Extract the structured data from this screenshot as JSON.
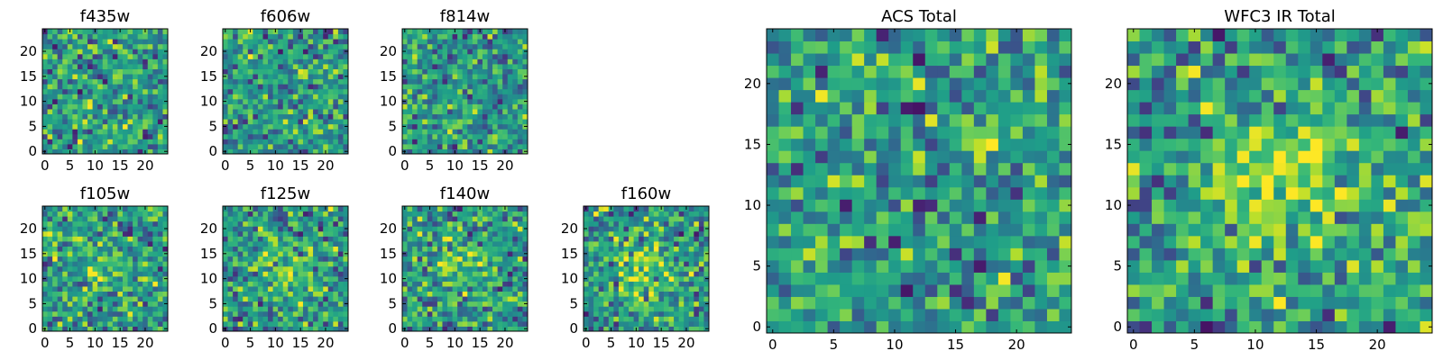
{
  "colormap": "viridis",
  "colors": {
    "low": "#440154",
    "mid": "#21918c",
    "high": "#fde725",
    "axis": "#000000",
    "background": "#ffffff"
  },
  "chart_data": [
    {
      "type": "heatmap",
      "title": "f435w",
      "grid": [
        25,
        25
      ],
      "xlim": [
        -0.5,
        24.5
      ],
      "ylim": [
        -0.5,
        24.5
      ],
      "xticks": [
        "0",
        "5",
        "10",
        "15",
        "20"
      ],
      "yticks": [
        "0",
        "5",
        "10",
        "15",
        "20"
      ],
      "pattern": "noise"
    },
    {
      "type": "heatmap",
      "title": "f606w",
      "grid": [
        25,
        25
      ],
      "xlim": [
        -0.5,
        24.5
      ],
      "ylim": [
        -0.5,
        24.5
      ],
      "xticks": [
        "0",
        "5",
        "10",
        "15",
        "20"
      ],
      "yticks": [
        "0",
        "5",
        "10",
        "15",
        "20"
      ],
      "pattern": "noise"
    },
    {
      "type": "heatmap",
      "title": "f814w",
      "grid": [
        25,
        25
      ],
      "xlim": [
        -0.5,
        24.5
      ],
      "ylim": [
        -0.5,
        24.5
      ],
      "xticks": [
        "0",
        "5",
        "10",
        "15",
        "20"
      ],
      "yticks": [
        "0",
        "5",
        "10",
        "15",
        "20"
      ],
      "pattern": "noise"
    },
    {
      "type": "heatmap",
      "title": "f105w",
      "grid": [
        25,
        25
      ],
      "xlim": [
        -0.5,
        24.5
      ],
      "ylim": [
        -0.5,
        24.5
      ],
      "xticks": [
        "0",
        "5",
        "10",
        "15",
        "20"
      ],
      "yticks": [
        "0",
        "5",
        "10",
        "15",
        "20"
      ],
      "pattern": "noise with faint central source"
    },
    {
      "type": "heatmap",
      "title": "f125w",
      "grid": [
        25,
        25
      ],
      "xlim": [
        -0.5,
        24.5
      ],
      "ylim": [
        -0.5,
        24.5
      ],
      "xticks": [
        "0",
        "5",
        "10",
        "15",
        "20"
      ],
      "yticks": [
        "0",
        "5",
        "10",
        "15",
        "20"
      ],
      "pattern": "noise with central source"
    },
    {
      "type": "heatmap",
      "title": "f140w",
      "grid": [
        25,
        25
      ],
      "xlim": [
        -0.5,
        24.5
      ],
      "ylim": [
        -0.5,
        24.5
      ],
      "xticks": [
        "0",
        "5",
        "10",
        "15",
        "20"
      ],
      "yticks": [
        "0",
        "5",
        "10",
        "15",
        "20"
      ],
      "pattern": "noise with central source"
    },
    {
      "type": "heatmap",
      "title": "f160w",
      "grid": [
        25,
        25
      ],
      "xlim": [
        -0.5,
        24.5
      ],
      "ylim": [
        -0.5,
        24.5
      ],
      "xticks": [
        "0",
        "5",
        "10",
        "15",
        "20"
      ],
      "yticks": [
        "0",
        "5",
        "10",
        "15",
        "20"
      ],
      "pattern": "noise with central source"
    },
    {
      "type": "heatmap",
      "title": "ACS Total",
      "grid": [
        25,
        25
      ],
      "xlim": [
        -0.5,
        24.5
      ],
      "ylim": [
        -0.5,
        24.5
      ],
      "xticks": [
        "0",
        "5",
        "10",
        "15",
        "20"
      ],
      "yticks": [
        "0",
        "5",
        "10",
        "15",
        "20"
      ],
      "pattern": "noise"
    },
    {
      "type": "heatmap",
      "title": "WFC3 IR Total",
      "grid": [
        25,
        25
      ],
      "xlim": [
        -0.5,
        24.5
      ],
      "ylim": [
        -0.5,
        24.5
      ],
      "xticks": [
        "0",
        "5",
        "10",
        "15",
        "20"
      ],
      "yticks": [
        "0",
        "5",
        "10",
        "15",
        "20"
      ],
      "pattern": "central source near (12,12)"
    }
  ]
}
